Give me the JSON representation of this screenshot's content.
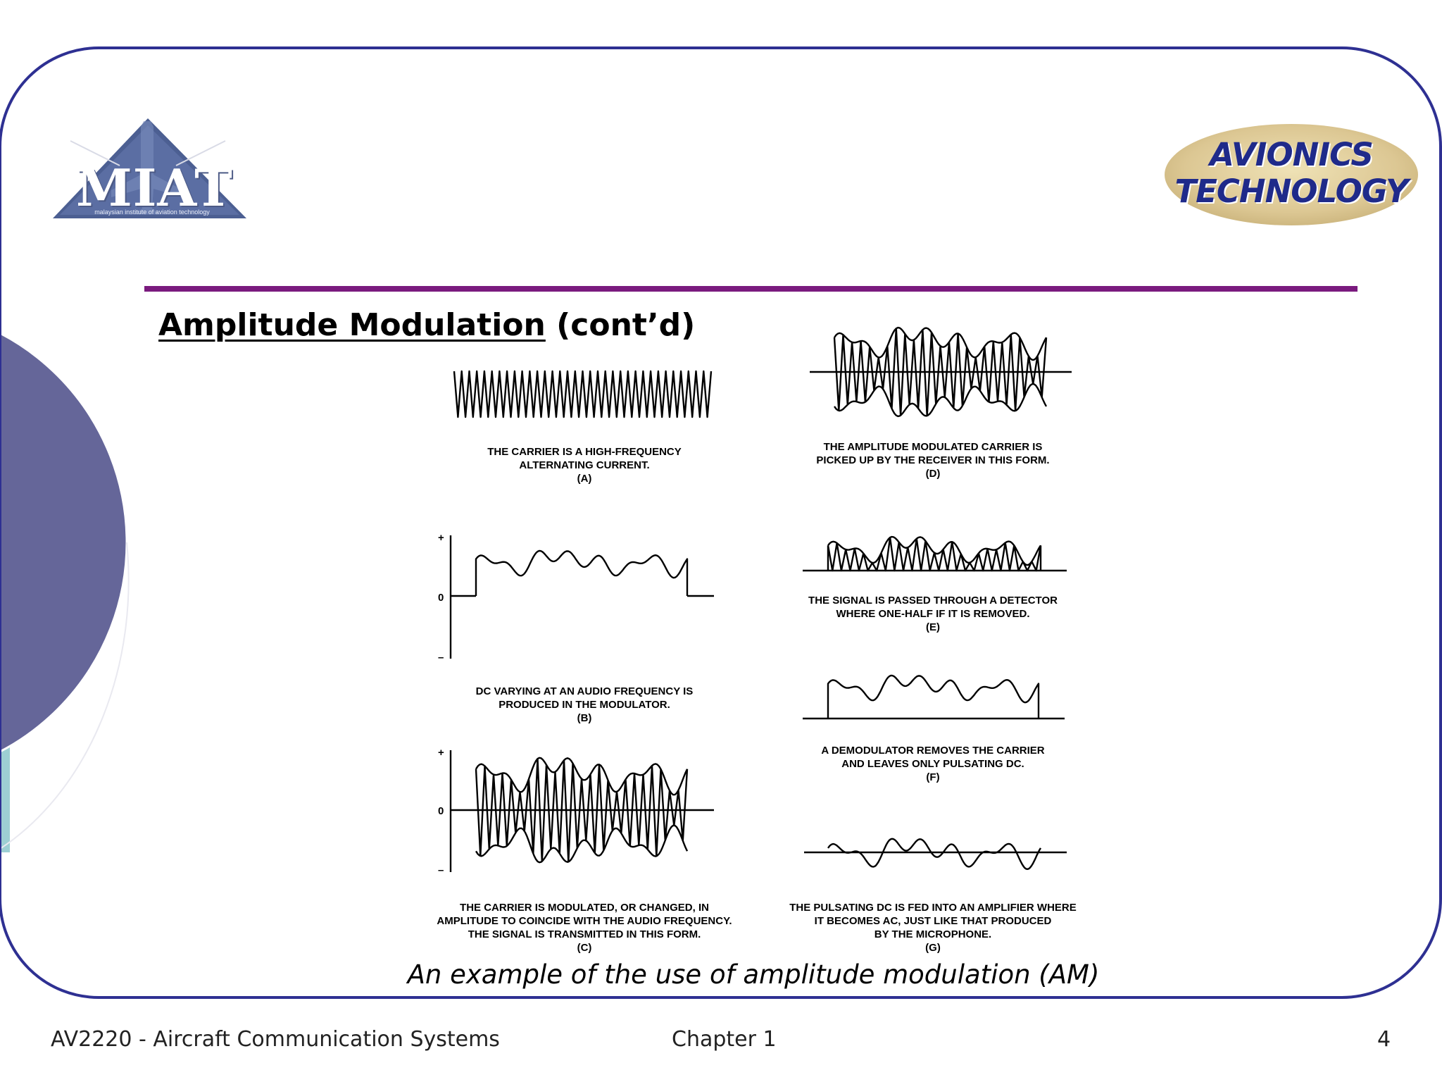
{
  "logo": {
    "text": "MIAT",
    "subtitle": "malaysian institute of aviation technology"
  },
  "badge": {
    "line1": "AVIONICS",
    "line2": "TECHNOLOGY"
  },
  "slide": {
    "title_main": "Amplitude Modulation",
    "title_suffix": " (cont’d)",
    "caption": "An example of the use of amplitude modulation (AM)"
  },
  "figures": {
    "a": {
      "caption": "THE CARRIER IS A HIGH-FREQUENCY\nALTERNATING CURRENT.\n(A)"
    },
    "b": {
      "caption": "DC VARYING AT AN AUDIO FREQUENCY IS\nPRODUCED IN THE MODULATOR.\n(B)",
      "plus": "+",
      "zero": "0",
      "minus": "–"
    },
    "c": {
      "caption": "THE CARRIER IS MODULATED, OR CHANGED, IN\nAMPLITUDE TO COINCIDE WITH THE AUDIO FREQUENCY.\nTHE SIGNAL IS TRANSMITTED IN THIS FORM.\n(C)",
      "plus": "+",
      "zero": "0",
      "minus": "–"
    },
    "d": {
      "caption": "THE AMPLITUDE MODULATED CARRIER IS\nPICKED UP BY THE RECEIVER IN THIS FORM.\n(D)"
    },
    "e": {
      "caption": "THE SIGNAL IS PASSED THROUGH A DETECTOR\nWHERE ONE-HALF IF IT IS REMOVED.\n(E)"
    },
    "f": {
      "caption": "A DEMODULATOR REMOVES THE CARRIER\nAND LEAVES ONLY PULSATING DC.\n(F)"
    },
    "g": {
      "caption": "THE PULSATING DC IS FED INTO AN AMPLIFIER WHERE\nIT BECOMES AC, JUST LIKE THAT PRODUCED\nBY THE MICROPHONE.\n(G)"
    }
  },
  "footer": {
    "course": "AV2220 - Aircraft Communication Systems",
    "chapter": "Chapter 1",
    "page": "4"
  },
  "colors": {
    "frame": "#2e3092",
    "rule": "#7a1a7e",
    "circle": "#656699",
    "teal": "#9dcfd3",
    "badge": "#dcc793",
    "badge_text": "#1f2a8a"
  }
}
